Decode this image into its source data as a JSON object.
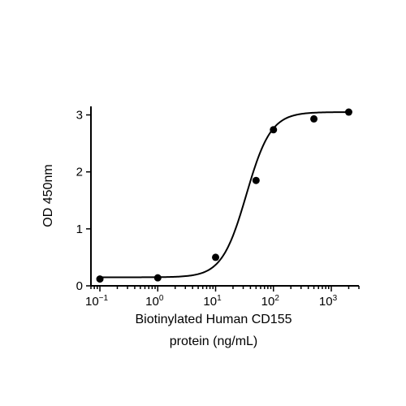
{
  "chart_data": {
    "type": "scatter",
    "title": "",
    "xlabel_lines": [
      "Biotinylated Human CD155",
      "protein (ng/mL)"
    ],
    "ylabel": "OD 450nm",
    "xscale": "log",
    "xlim": [
      0.07,
      3000
    ],
    "ylim": [
      0,
      3.15
    ],
    "y_ticks": [
      "0",
      "1",
      "2",
      "3"
    ],
    "x_ticks": [
      {
        "base": "10",
        "exp": "−1"
      },
      {
        "base": "10",
        "exp": "0"
      },
      {
        "base": "10",
        "exp": "1"
      },
      {
        "base": "10",
        "exp": "2"
      },
      {
        "base": "10",
        "exp": "3"
      }
    ],
    "series": [
      {
        "x": [
          0.1,
          1,
          10,
          50,
          100,
          500,
          2000
        ],
        "y": [
          0.12,
          0.14,
          0.5,
          1.85,
          2.74,
          2.93,
          3.05
        ]
      }
    ],
    "fit": {
      "bottom": 0.15,
      "top": 3.05,
      "ec50": 34,
      "hill": 2.05
    },
    "grid": false,
    "colors": {
      "points": "#000000",
      "curve": "#000000",
      "axes": "#000000"
    }
  }
}
